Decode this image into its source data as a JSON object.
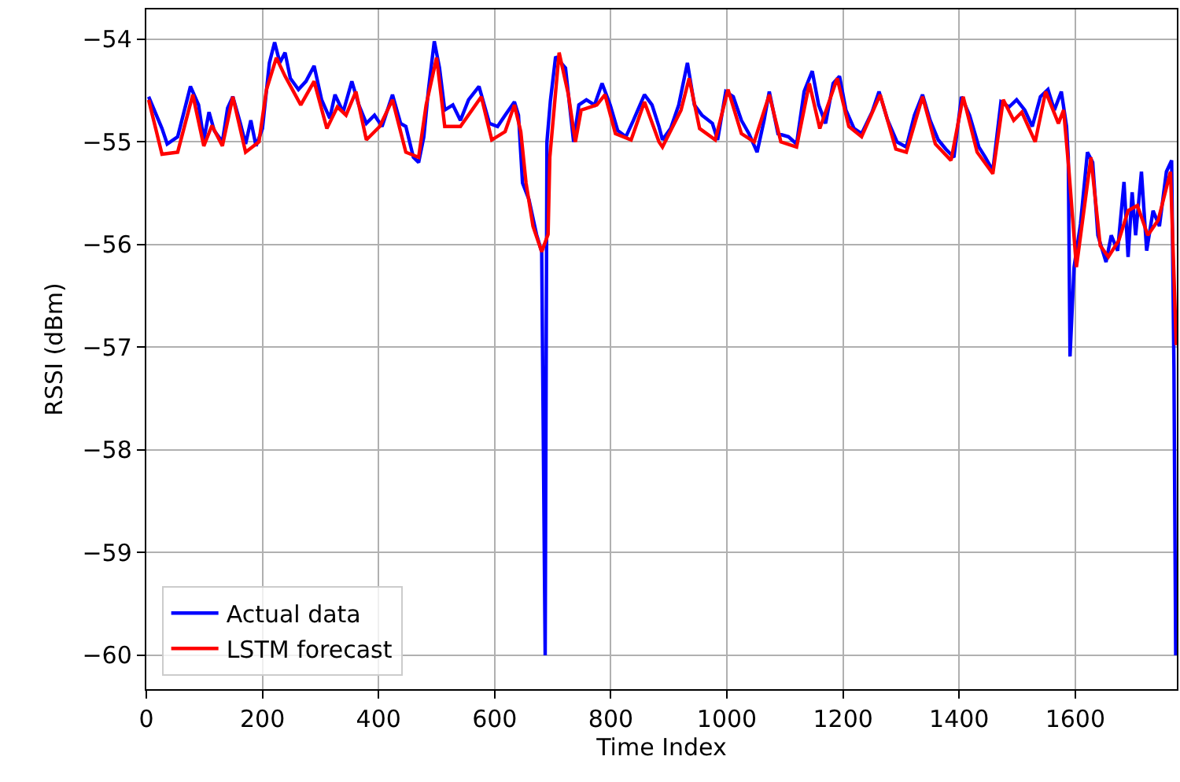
{
  "chart_data": {
    "type": "line",
    "xlabel": "Time Index",
    "ylabel": "RSSI (dBm)",
    "xlim": [
      0,
      1775
    ],
    "ylim": [
      -60.33,
      -53.71
    ],
    "xticks": [
      0,
      200,
      400,
      600,
      800,
      1000,
      1200,
      1400,
      1600
    ],
    "yticks": [
      {
        "value": -60,
        "label": "−60"
      },
      {
        "value": -59,
        "label": "−59"
      },
      {
        "value": -58,
        "label": "−58"
      },
      {
        "value": -57,
        "label": "−57"
      },
      {
        "value": -56,
        "label": "−56"
      },
      {
        "value": -55,
        "label": "−55"
      },
      {
        "value": -54,
        "label": "−54"
      }
    ],
    "grid": true,
    "legend": "bottom left",
    "marker": "none",
    "line_style": "solid",
    "series": [
      {
        "name": "Actual data",
        "color": "#0000ff",
        "x": [
          4,
          27,
          36,
          54,
          76,
          90,
          99,
          108,
          117,
          131,
          140,
          149,
          162,
          171,
          180,
          189,
          200,
          212,
          221,
          230,
          239,
          248,
          262,
          275,
          289,
          302,
          316,
          325,
          339,
          354,
          366,
          379,
          393,
          406,
          424,
          438,
          447,
          460,
          469,
          478,
          486,
          496,
          505,
          514,
          528,
          541,
          555,
          573,
          591,
          605,
          618,
          634,
          641,
          648,
          659,
          672,
          681,
          687,
          690,
          696,
          705,
          722,
          736,
          745,
          758,
          772,
          785,
          799,
          812,
          826,
          839,
          858,
          871,
          883,
          889,
          903,
          917,
          932,
          944,
          957,
          975,
          984,
          998,
          1011,
          1025,
          1038,
          1052,
          1064,
          1073,
          1088,
          1106,
          1120,
          1133,
          1147,
          1158,
          1170,
          1183,
          1194,
          1205,
          1219,
          1232,
          1250,
          1262,
          1277,
          1293,
          1309,
          1323,
          1337,
          1350,
          1364,
          1377,
          1391,
          1404,
          1418,
          1434,
          1445,
          1458,
          1472,
          1486,
          1499,
          1513,
          1526,
          1540,
          1553,
          1564,
          1576,
          1585,
          1588,
          1591,
          1598,
          1609,
          1621,
          1630,
          1639,
          1653,
          1662,
          1673,
          1684,
          1691,
          1698,
          1704,
          1714,
          1723,
          1734,
          1745,
          1757,
          1766,
          1770,
          1773
        ],
        "values": [
          -54.56,
          -54.87,
          -55.02,
          -54.95,
          -54.46,
          -54.64,
          -54.98,
          -54.71,
          -54.89,
          -55.0,
          -54.67,
          -54.56,
          -54.82,
          -55.02,
          -54.79,
          -55.04,
          -54.87,
          -54.23,
          -54.03,
          -54.23,
          -54.13,
          -54.38,
          -54.49,
          -54.41,
          -54.26,
          -54.59,
          -54.77,
          -54.54,
          -54.71,
          -54.41,
          -54.64,
          -54.82,
          -54.74,
          -54.85,
          -54.54,
          -54.82,
          -54.85,
          -55.15,
          -55.2,
          -54.95,
          -54.49,
          -54.02,
          -54.28,
          -54.69,
          -54.64,
          -54.79,
          -54.59,
          -54.46,
          -54.82,
          -54.85,
          -54.74,
          -54.61,
          -54.74,
          -55.4,
          -55.56,
          -55.9,
          -56.07,
          -60.0,
          -55.0,
          -54.6,
          -54.17,
          -54.28,
          -55.0,
          -54.64,
          -54.59,
          -54.64,
          -54.43,
          -54.64,
          -54.89,
          -54.95,
          -54.79,
          -54.54,
          -54.64,
          -54.85,
          -54.98,
          -54.87,
          -54.64,
          -54.23,
          -54.64,
          -54.74,
          -54.82,
          -54.98,
          -54.51,
          -54.56,
          -54.79,
          -54.92,
          -55.1,
          -54.79,
          -54.51,
          -54.92,
          -54.95,
          -55.02,
          -54.51,
          -54.31,
          -54.64,
          -54.82,
          -54.43,
          -54.36,
          -54.69,
          -54.87,
          -54.92,
          -54.71,
          -54.51,
          -54.79,
          -55.0,
          -55.05,
          -54.74,
          -54.54,
          -54.79,
          -54.98,
          -55.07,
          -55.15,
          -54.56,
          -54.74,
          -55.05,
          -55.15,
          -55.28,
          -54.61,
          -54.66,
          -54.59,
          -54.69,
          -54.85,
          -54.56,
          -54.49,
          -54.69,
          -54.51,
          -54.85,
          -55.15,
          -57.09,
          -56.22,
          -55.8,
          -55.1,
          -55.2,
          -55.91,
          -56.17,
          -55.91,
          -56.06,
          -55.39,
          -56.12,
          -55.49,
          -55.91,
          -55.29,
          -56.06,
          -55.67,
          -55.82,
          -55.29,
          -55.18,
          -57.2,
          -60.0
        ]
      },
      {
        "name": "LSTM forecast",
        "color": "#ff0000",
        "x": [
          4,
          27,
          54,
          80,
          99,
          113,
          131,
          149,
          171,
          194,
          207,
          224,
          239,
          266,
          289,
          311,
          329,
          344,
          361,
          379,
          402,
          424,
          447,
          469,
          482,
          500,
          514,
          541,
          577,
          595,
          618,
          634,
          645,
          654,
          666,
          681,
          692,
          695,
          711,
          727,
          739,
          749,
          776,
          790,
          808,
          835,
          858,
          883,
          889,
          921,
          935,
          953,
          980,
          1002,
          1025,
          1047,
          1073,
          1093,
          1120,
          1142,
          1160,
          1190,
          1210,
          1232,
          1264,
          1291,
          1309,
          1337,
          1359,
          1386,
          1407,
          1431,
          1458,
          1476,
          1494,
          1508,
          1531,
          1549,
          1571,
          1580,
          1589,
          1602,
          1627,
          1643,
          1657,
          1675,
          1691,
          1707,
          1725,
          1743,
          1764,
          1774
        ],
        "values": [
          -54.59,
          -55.12,
          -55.1,
          -54.54,
          -55.04,
          -54.84,
          -55.04,
          -54.56,
          -55.1,
          -55.0,
          -54.49,
          -54.18,
          -54.36,
          -54.64,
          -54.41,
          -54.87,
          -54.66,
          -54.74,
          -54.51,
          -54.98,
          -54.85,
          -54.59,
          -55.1,
          -55.15,
          -54.64,
          -54.18,
          -54.85,
          -54.85,
          -54.56,
          -54.98,
          -54.9,
          -54.64,
          -54.9,
          -55.4,
          -55.82,
          -56.07,
          -55.9,
          -55.15,
          -54.13,
          -54.54,
          -55.0,
          -54.69,
          -54.64,
          -54.54,
          -54.92,
          -54.98,
          -54.61,
          -55.0,
          -55.05,
          -54.69,
          -54.38,
          -54.87,
          -54.98,
          -54.49,
          -54.92,
          -55.0,
          -54.54,
          -55.0,
          -55.05,
          -54.43,
          -54.87,
          -54.38,
          -54.85,
          -54.95,
          -54.54,
          -55.07,
          -55.1,
          -54.56,
          -55.02,
          -55.18,
          -54.56,
          -55.1,
          -55.31,
          -54.59,
          -54.79,
          -54.71,
          -55.0,
          -54.51,
          -54.82,
          -54.69,
          -55.27,
          -56.22,
          -55.15,
          -56.01,
          -56.12,
          -55.96,
          -55.67,
          -55.62,
          -55.91,
          -55.76,
          -55.29,
          -56.98
        ]
      }
    ]
  }
}
